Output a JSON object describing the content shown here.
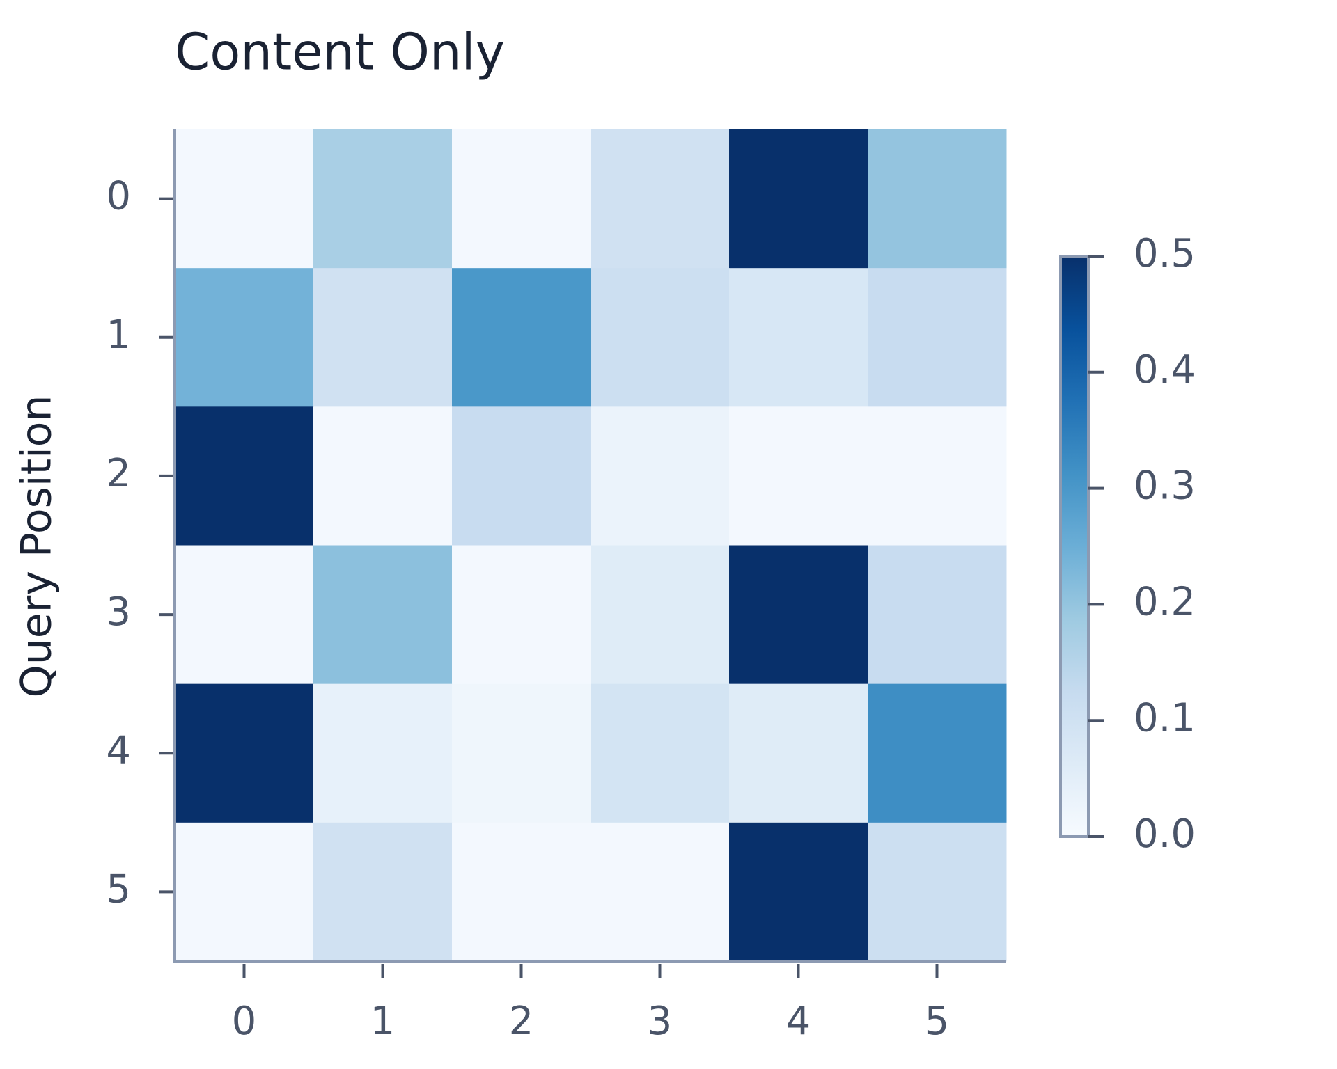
{
  "chart_data": {
    "type": "heatmap",
    "title": "Content Only",
    "y_label": "Query Position",
    "x_categories": [
      "0",
      "1",
      "2",
      "3",
      "4",
      "5"
    ],
    "y_categories": [
      "0",
      "1",
      "2",
      "3",
      "4",
      "5"
    ],
    "values": [
      [
        0.01,
        0.17,
        0.01,
        0.1,
        0.5,
        0.2
      ],
      [
        0.24,
        0.1,
        0.3,
        0.11,
        0.08,
        0.12
      ],
      [
        0.5,
        0.01,
        0.12,
        0.03,
        0.01,
        0.01
      ],
      [
        0.01,
        0.21,
        0.01,
        0.06,
        0.5,
        0.12
      ],
      [
        0.5,
        0.04,
        0.02,
        0.09,
        0.06,
        0.32
      ],
      [
        0.01,
        0.1,
        0.01,
        0.01,
        0.5,
        0.11
      ]
    ],
    "colormap": "Blues",
    "clim": [
      0,
      0.5
    ],
    "cticks": [
      {
        "value": 0,
        "label": "0.0"
      },
      0.1,
      0.2,
      0.3,
      0.4,
      0.5
    ]
  }
}
